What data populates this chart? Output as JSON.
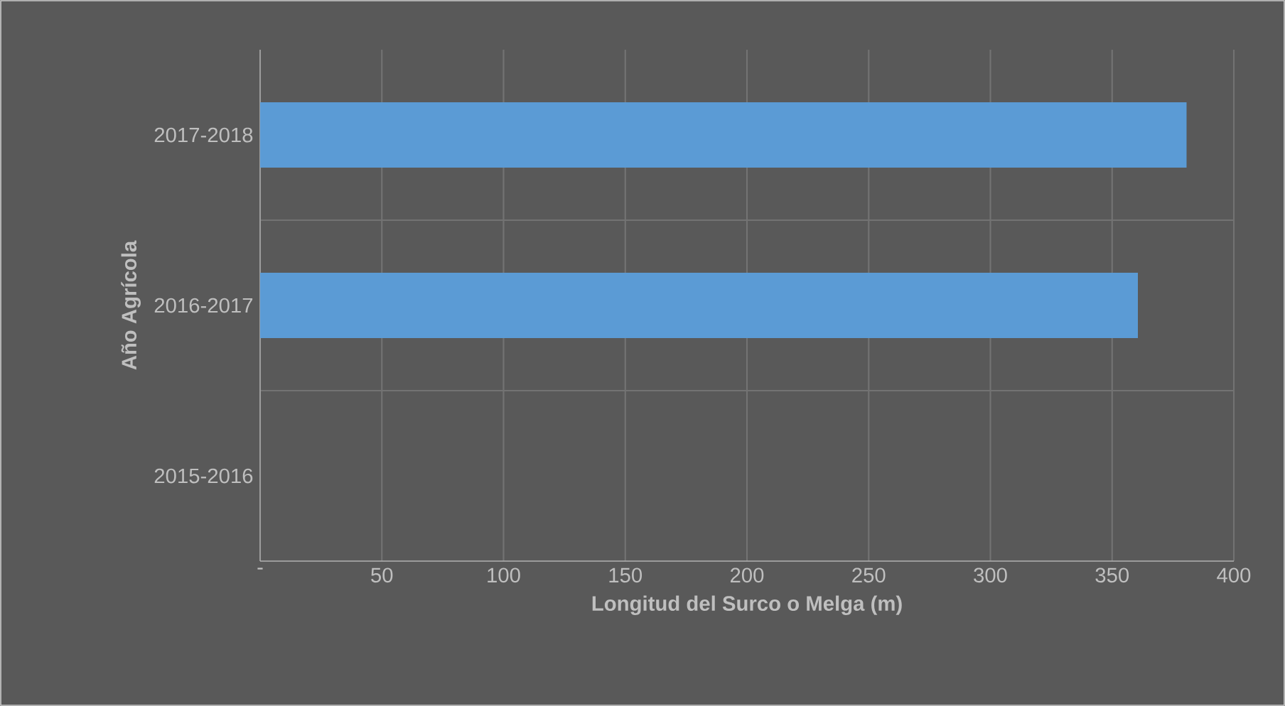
{
  "chart_data": {
    "type": "bar",
    "orientation": "horizontal",
    "xlabel": "Longitud del Surco o Melga (m)",
    "ylabel": "Año Agrícola",
    "categories": [
      "2017-2018",
      "2016-2017",
      "2015-2016"
    ],
    "values": [
      380,
      360,
      null
    ],
    "color": "#5b9bd5",
    "xlim": [
      0,
      400
    ],
    "xticks": [
      {
        "value": 0,
        "label": "-"
      },
      50,
      100,
      150,
      200,
      250,
      300,
      350,
      400
    ],
    "grid": true
  }
}
